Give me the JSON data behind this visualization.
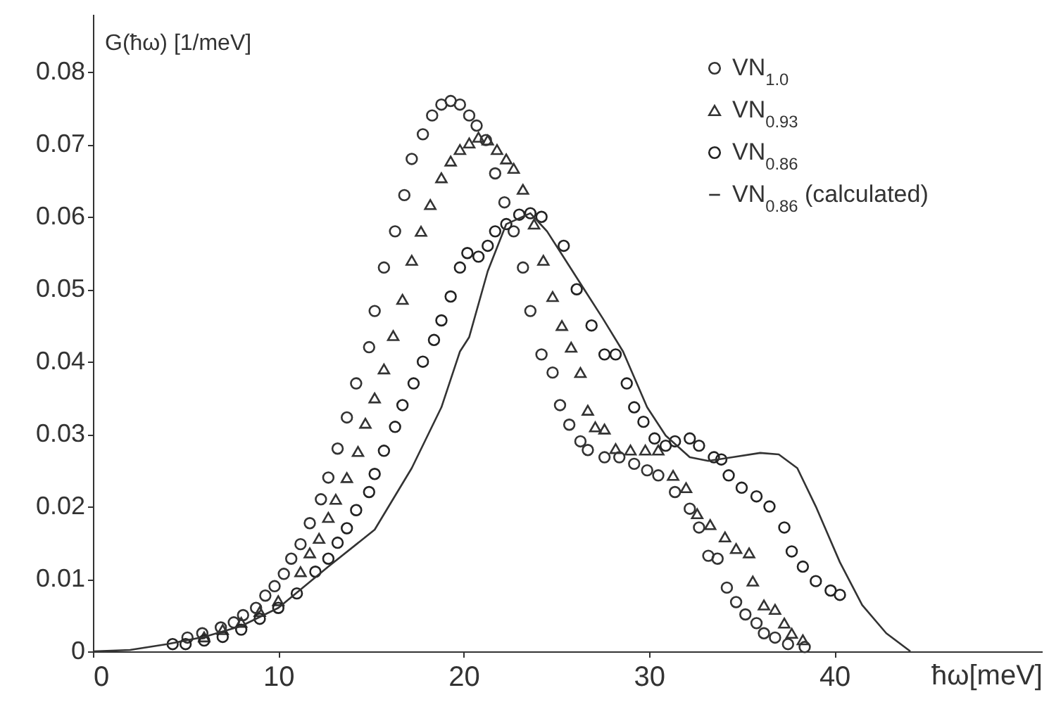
{
  "chart_data": {
    "type": "scatter",
    "xlabel": "ħω[meV]",
    "ylabel": "G(ħω) [1/meV]",
    "xlim": [
      0,
      51.2
    ],
    "ylim": [
      0,
      0.088
    ],
    "xticks": [
      0,
      10,
      20,
      30,
      40
    ],
    "yticks": [
      0,
      0.01,
      0.02,
      0.03,
      0.04,
      0.05,
      0.06,
      0.07,
      0.08
    ],
    "grid": false,
    "legend": "top right",
    "series": [
      {
        "name": "VN$_{1.0}$",
        "marker": "circle",
        "color": "#333333",
        "x": [
          5.1,
          5.9,
          6.9,
          7.6,
          8.1,
          8.8,
          9.3,
          9.8,
          10.3,
          10.7,
          11.2,
          11.7,
          12.3,
          12.7,
          13.2,
          13.7,
          14.2,
          14.9,
          15.2,
          15.7,
          16.3,
          16.8,
          17.2,
          17.8,
          18.3,
          18.8,
          19.3,
          19.8,
          20.3,
          20.7,
          21.2,
          21.7,
          22.2,
          22.7,
          23.2,
          23.6,
          24.2,
          24.8,
          25.2,
          25.7,
          26.3,
          26.7,
          27.6,
          28.4,
          29.2,
          29.9,
          30.5,
          31.4,
          32.2,
          32.7,
          33.2,
          33.7,
          34.2,
          34.7,
          35.2,
          35.8,
          36.2,
          36.8,
          37.5,
          38.4
        ],
        "values": [
          0.0019,
          0.0025,
          0.0033,
          0.004,
          0.005,
          0.006,
          0.0077,
          0.009,
          0.0107,
          0.0128,
          0.0148,
          0.0177,
          0.021,
          0.024,
          0.028,
          0.0323,
          0.037,
          0.042,
          0.047,
          0.053,
          0.058,
          0.063,
          0.068,
          0.0714,
          0.074,
          0.0755,
          0.076,
          0.0755,
          0.074,
          0.0726,
          0.0706,
          0.066,
          0.062,
          0.058,
          0.053,
          0.047,
          0.041,
          0.0385,
          0.034,
          0.0313,
          0.029,
          0.0278,
          0.0268,
          0.0268,
          0.0259,
          0.025,
          0.0243,
          0.022,
          0.0197,
          0.0171,
          0.0132,
          0.0128,
          0.0088,
          0.0068,
          0.0051,
          0.0039,
          0.0025,
          0.0019,
          0.001,
          0.0006
        ]
      },
      {
        "name": "VN$_{0.93}$",
        "marker": "triangle",
        "color": "#333333",
        "x": [
          6,
          7,
          8,
          9,
          10,
          11.2,
          11.7,
          12.2,
          12.7,
          13.1,
          13.7,
          14.3,
          14.7,
          15.2,
          15.7,
          16.2,
          16.7,
          17.2,
          17.7,
          18.2,
          18.8,
          19.3,
          19.8,
          20.3,
          20.8,
          21.3,
          21.8,
          22.3,
          22.7,
          23.2,
          23.8,
          24.3,
          24.8,
          25.3,
          25.8,
          26.3,
          26.7,
          27.1,
          27.6,
          28.2,
          29,
          29.8,
          30.5,
          31.3,
          32,
          32.6,
          33.3,
          34.1,
          34.7,
          35.4,
          35.6,
          36.2,
          36.8,
          37.3,
          37.7,
          38.3
        ],
        "values": [
          0.002,
          0.003,
          0.004,
          0.0055,
          0.007,
          0.011,
          0.0136,
          0.0156,
          0.0185,
          0.021,
          0.024,
          0.0276,
          0.0315,
          0.035,
          0.039,
          0.0436,
          0.0486,
          0.054,
          0.058,
          0.0617,
          0.0654,
          0.0677,
          0.0693,
          0.0702,
          0.071,
          0.0706,
          0.0693,
          0.068,
          0.0667,
          0.0638,
          0.059,
          0.054,
          0.049,
          0.045,
          0.042,
          0.0385,
          0.0333,
          0.031,
          0.0307,
          0.028,
          0.0278,
          0.0278,
          0.0278,
          0.0243,
          0.0226,
          0.019,
          0.0175,
          0.0158,
          0.0142,
          0.0136,
          0.0097,
          0.0064,
          0.0058,
          0.0039,
          0.0025,
          0.0016
        ]
      },
      {
        "name": "VN$_{0.86}$",
        "marker": "circle",
        "color": "#222222",
        "x": [
          4.3,
          5,
          6,
          7,
          8,
          9,
          10,
          11,
          12,
          12.7,
          13.2,
          13.7,
          14.2,
          14.9,
          15.2,
          15.7,
          16.3,
          16.7,
          17.3,
          17.8,
          18.4,
          18.8,
          19.3,
          19.8,
          20.2,
          20.8,
          21.3,
          21.7,
          22.3,
          23,
          23.6,
          24.2,
          25.4,
          26.1,
          26.9,
          27.6,
          28.2,
          28.8,
          29.2,
          29.7,
          30.3,
          30.9,
          31.4,
          32.2,
          32.7,
          33.5,
          33.9,
          34.3,
          35,
          35.8,
          36.5,
          37.3,
          37.7,
          38.3,
          39,
          39.8,
          40.3
        ],
        "values": [
          0.001,
          0.001,
          0.0015,
          0.002,
          0.003,
          0.0045,
          0.006,
          0.008,
          0.011,
          0.0128,
          0.015,
          0.017,
          0.0195,
          0.022,
          0.0245,
          0.0277,
          0.031,
          0.034,
          0.037,
          0.04,
          0.043,
          0.0457,
          0.049,
          0.053,
          0.055,
          0.0545,
          0.056,
          0.058,
          0.059,
          0.0603,
          0.0605,
          0.06,
          0.056,
          0.05,
          0.045,
          0.041,
          0.041,
          0.037,
          0.0337,
          0.0317,
          0.0294,
          0.0284,
          0.029,
          0.0294,
          0.0284,
          0.0268,
          0.0265,
          0.0243,
          0.0226,
          0.0214,
          0.02,
          0.0171,
          0.0138,
          0.0117,
          0.0097,
          0.0084,
          0.0078
        ]
      },
      {
        "name": "VN$_{0.86}$ (calculated)",
        "type": "line",
        "marker": "none",
        "line_style": "solid",
        "color": "#333333",
        "x": [
          0,
          2,
          4,
          6,
          8,
          10,
          12.7,
          15.2,
          17.2,
          18.8,
          19.8,
          20.3,
          21.3,
          22.3,
          23.6,
          24.5,
          25.5,
          26.5,
          27.5,
          28.6,
          29.9,
          30.9,
          32.2,
          33.2,
          34.5,
          36,
          37,
          38,
          39,
          40.3,
          41.5,
          42.8,
          44.1
        ],
        "values": [
          0,
          0.0002,
          0.001,
          0.002,
          0.0035,
          0.006,
          0.0117,
          0.0168,
          0.0253,
          0.0337,
          0.0414,
          0.0434,
          0.0525,
          0.059,
          0.0605,
          0.058,
          0.054,
          0.05,
          0.046,
          0.0414,
          0.0337,
          0.0298,
          0.0268,
          0.0263,
          0.0268,
          0.0274,
          0.0272,
          0.0253,
          0.02,
          0.0123,
          0.0064,
          0.0025,
          0
        ]
      }
    ]
  }
}
